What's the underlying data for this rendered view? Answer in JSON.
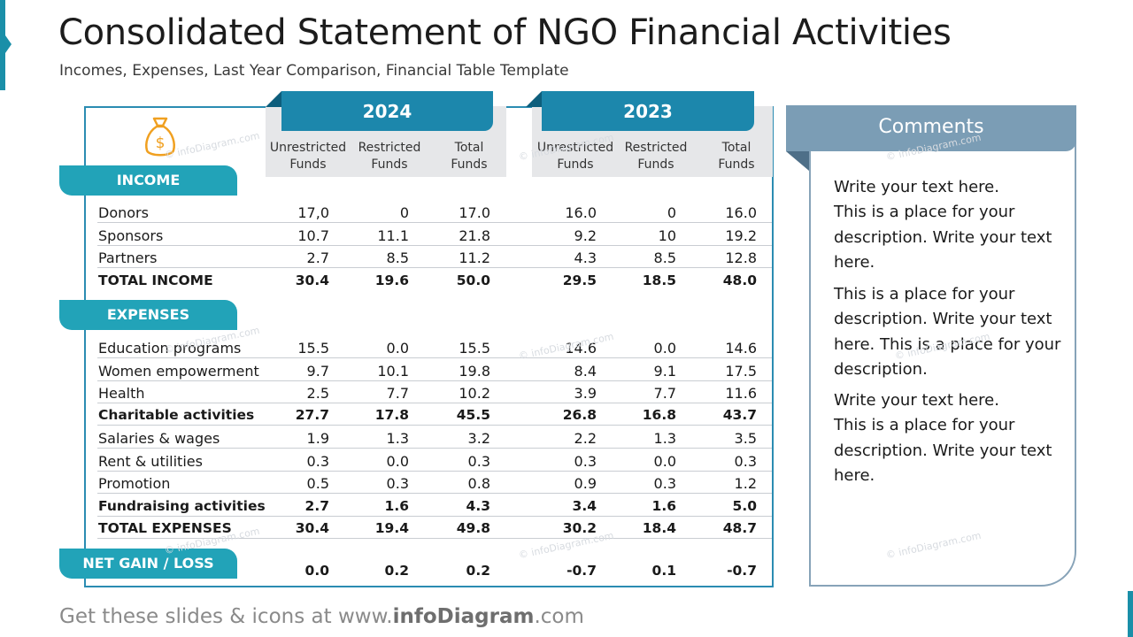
{
  "title": "Consolidated Statement of NGO Financial Activities",
  "subtitle": "Incomes, Expenses, Last Year Comparison, Financial Table Template",
  "years": [
    "2024",
    "2023"
  ],
  "column_headers": [
    [
      "Unrestricted",
      "Funds"
    ],
    [
      "Restricted",
      "Funds"
    ],
    [
      "Total",
      "Funds"
    ],
    [
      "Unrestricted",
      "Funds"
    ],
    [
      "Restricted",
      "Funds"
    ],
    [
      "Total",
      "Funds"
    ]
  ],
  "sections": {
    "income": "INCOME",
    "expenses": "EXPENSES",
    "net": "NET GAIN / LOSS"
  },
  "income_rows": [
    {
      "label": "Donors",
      "values": [
        "17,0",
        "0",
        "17.0",
        "16.0",
        "0",
        "16.0"
      ],
      "bold": false
    },
    {
      "label": "Sponsors",
      "values": [
        "10.7",
        "11.1",
        "21.8",
        "9.2",
        "10",
        "19.2"
      ],
      "bold": false
    },
    {
      "label": "Partners",
      "values": [
        "2.7",
        "8.5",
        "11.2",
        "4.3",
        "8.5",
        "12.8"
      ],
      "bold": false
    },
    {
      "label": "TOTAL INCOME",
      "values": [
        "30.4",
        "19.6",
        "50.0",
        "29.5",
        "18.5",
        "48.0"
      ],
      "bold": true
    }
  ],
  "expense_rows": [
    {
      "label": "Education programs",
      "values": [
        "15.5",
        "0.0",
        "15.5",
        "14.6",
        "0.0",
        "14.6"
      ],
      "bold": false
    },
    {
      "label": "Women empowerment",
      "values": [
        "9.7",
        "10.1",
        "19.8",
        "8.4",
        "9.1",
        "17.5"
      ],
      "bold": false
    },
    {
      "label": "Health",
      "values": [
        "2.5",
        "7.7",
        "10.2",
        "3.9",
        "7.7",
        "11.6"
      ],
      "bold": false
    },
    {
      "label": "Charitable activities",
      "values": [
        "27.7",
        "17.8",
        "45.5",
        "26.8",
        "16.8",
        "43.7"
      ],
      "bold": true
    },
    {
      "label": "Salaries & wages",
      "values": [
        "1.9",
        "1.3",
        "3.2",
        "2.2",
        "1.3",
        "3.5"
      ],
      "bold": false
    },
    {
      "label": "Rent & utilities",
      "values": [
        "0.3",
        "0.0",
        "0.3",
        "0.3",
        "0.0",
        "0.3"
      ],
      "bold": false
    },
    {
      "label": "Promotion",
      "values": [
        "0.5",
        "0.3",
        "0.8",
        "0.9",
        "0.3",
        "1.2"
      ],
      "bold": false
    },
    {
      "label": "Fundraising activities",
      "values": [
        "2.7",
        "1.6",
        "4.3",
        "3.4",
        "1.6",
        "5.0"
      ],
      "bold": true
    },
    {
      "label": "TOTAL EXPENSES",
      "values": [
        "30.4",
        "19.4",
        "49.8",
        "30.2",
        "18.4",
        "48.7"
      ],
      "bold": true
    }
  ],
  "net_values": [
    "0.0",
    "0.2",
    "0.2",
    "-0.7",
    "0.1",
    "-0.7"
  ],
  "comments": {
    "title": "Comments",
    "paragraphs": [
      [
        "Write your text here.",
        "This is a place for your",
        "description. Write your text",
        "here."
      ],
      [
        "This is a place for your",
        "description. Write your text",
        "here. This is a place for your",
        "description."
      ],
      [
        "Write your text here.",
        "This is a place for your",
        "description. Write your text",
        "here."
      ]
    ]
  },
  "watermark": "© infoDiagram.com",
  "footer": {
    "prefix": "Get these slides & icons at www.",
    "brand": "infoDiagram",
    "suffix": ".com"
  },
  "colors": {
    "accent": "#1c87ac",
    "section_tab": "#22a3b8",
    "comment_header": "#7b9db5",
    "icon": "#f0a020"
  }
}
